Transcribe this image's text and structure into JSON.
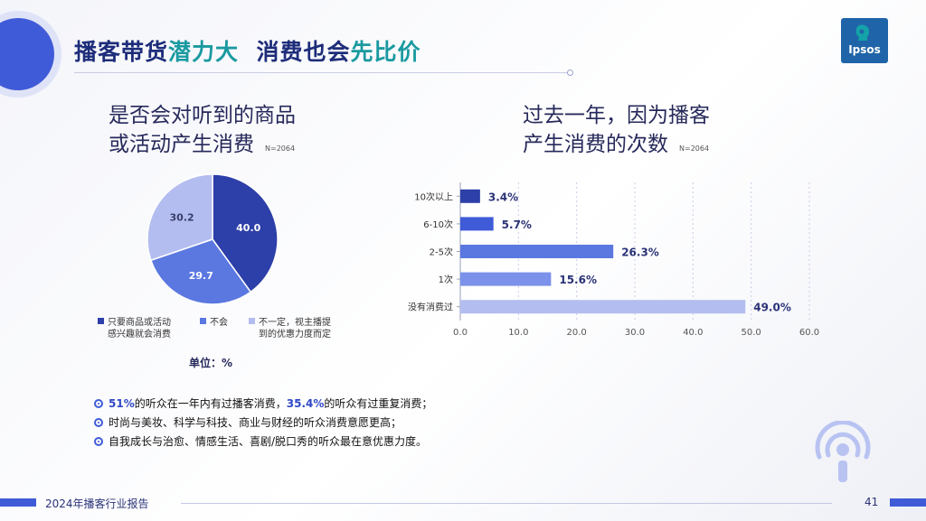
{
  "header": {
    "title_part1": "播客带货",
    "title_part2": "潜力大",
    "title_part3": "消费也会",
    "title_part4": "先比价",
    "logo_text": "Ipsos"
  },
  "left": {
    "question_line1": "是否会对听到的商品",
    "question_line2": "或活动产生消费",
    "n_label": "N=2064",
    "unit": "单位：%",
    "legend": [
      {
        "line1": "只要商品或活动",
        "line2": "感兴趣就会消费"
      },
      {
        "line1": "不会",
        "line2": ""
      },
      {
        "line1": "不一定，视主播提",
        "line2": "到的优惠力度而定"
      }
    ]
  },
  "right": {
    "question_line1": "过去一年，因为播客",
    "question_line2": "产生消费的次数",
    "n_label": "N=2064"
  },
  "chart_data": [
    {
      "type": "pie",
      "categories": [
        "只要商品或活动感兴趣就会消费",
        "不会",
        "不一定，视主播提到的优惠力度而定"
      ],
      "values": [
        40.0,
        29.7,
        30.2
      ],
      "value_labels": [
        "40.0",
        "29.7",
        "30.2"
      ],
      "colors": [
        "#2d3fa8",
        "#5b78e0",
        "#b3bdf0"
      ]
    },
    {
      "type": "bar",
      "orientation": "horizontal",
      "categories": [
        "10次以上",
        "6-10次",
        "2-5次",
        "1次",
        "没有消费过"
      ],
      "values": [
        3.4,
        5.7,
        26.3,
        15.6,
        49.0
      ],
      "value_labels": [
        "3.4%",
        "5.7%",
        "26.3%",
        "15.6%",
        "49.0%"
      ],
      "colors": [
        "#2d3fa8",
        "#3f5bd8",
        "#5b78e0",
        "#7b91ea",
        "#b3bdf0"
      ],
      "xlim": [
        0,
        60
      ],
      "xticks": [
        0,
        10,
        20,
        30,
        40,
        50,
        60
      ],
      "xtick_labels": [
        "0.0",
        "10.0",
        "20.0",
        "30.0",
        "40.0",
        "50.0",
        "60.0"
      ],
      "grid": true
    }
  ],
  "bullets": [
    {
      "hl1": "51%",
      "t1": "的听众在一年内有过播客消费，",
      "hl2": "35.4%",
      "t2": "的听众有过重复消费；"
    },
    {
      "text": "时尚与美妆、科学与科技、商业与财经的听众消费意愿更高；"
    },
    {
      "text": "自我成长与治愈、情感生活、喜剧/脱口秀的听众最在意优惠力度。"
    }
  ],
  "footer": {
    "report_title": "2024年播客行业报告",
    "page_number": "41"
  },
  "colors": {
    "accent": "#3f5bd8",
    "title_dark": "#1e2d7a",
    "title_teal": "#1a9aa0"
  },
  "icons": [
    "podcast-icon",
    "ipsos-logo"
  ]
}
